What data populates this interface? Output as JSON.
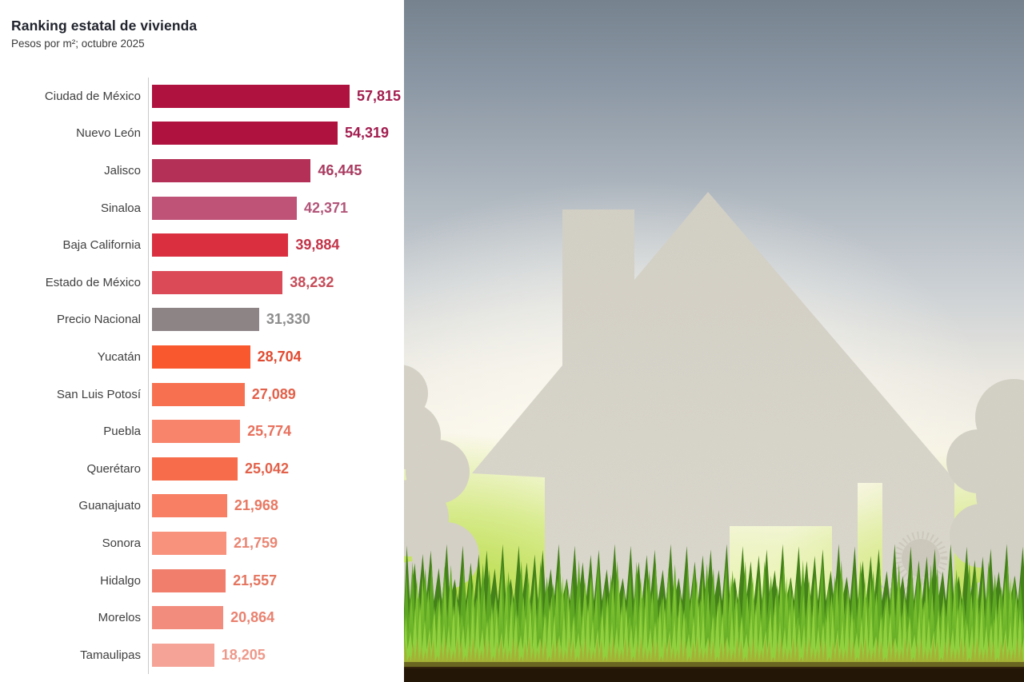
{
  "chart": {
    "title": "Ranking estatal de vivienda",
    "subtitle": "Pesos por m²; octubre 2025"
  },
  "chart_data": {
    "type": "bar",
    "orientation": "horizontal",
    "title": "Ranking estatal de vivienda",
    "subtitle": "Pesos por m²; octubre 2025",
    "unit": "pesos por m²",
    "categories": [
      "Ciudad de México",
      "Nuevo León",
      "Jalisco",
      "Sinaloa",
      "Baja California",
      "Estado de México",
      "Precio Nacional",
      "Yucatán",
      "San Luis Potosí",
      "Puebla",
      "Querétaro",
      "Guanajuato",
      "Sonora",
      "Hidalgo",
      "Morelos",
      "Tamaulipas"
    ],
    "values": [
      57815,
      54319,
      46445,
      42371,
      39884,
      38232,
      31330,
      28704,
      27089,
      25774,
      25042,
      21968,
      21759,
      21557,
      20864,
      18205
    ],
    "value_labels": [
      "57,815",
      "54,319",
      "46,445",
      "42,371",
      "39,884",
      "38,232",
      "31,330",
      "28,704",
      "27,089",
      "25,774",
      "25,042",
      "21,968",
      "21,759",
      "21,557",
      "20,864",
      "18,205"
    ],
    "bar_colors": [
      "#b0123f",
      "#b0123f",
      "#b43056",
      "#bf5277",
      "#d92f3e",
      "#da4a57",
      "#8d8486",
      "#f9572e",
      "#f77150",
      "#f8846b",
      "#f76c4b",
      "#f87f64",
      "#f8927d",
      "#f17e6d",
      "#f28c7d",
      "#f5a396"
    ],
    "value_label_colors": [
      "#a21d4e",
      "#a21d4e",
      "#a93a60",
      "#b25579",
      "#c23348",
      "#c64b58",
      "#8c8c8c",
      "#e04a31",
      "#e3604a",
      "#e8705c",
      "#e2614a",
      "#e87862",
      "#ea8471",
      "#e4755f",
      "#e9816f",
      "#ee9889"
    ],
    "label_color": "#3f3f3f",
    "axis": {
      "xlim": [
        0,
        57815
      ],
      "gridlines": false,
      "axis_line_color": "#c9c9c9"
    },
    "legend": "none",
    "national_reference_row": "Precio Nacional"
  },
  "illustration": {
    "alt": "paper cutout house with chimney, trees and dandelions standing in green grass",
    "colors": {
      "sky_top": "#76838f",
      "sky_warm": "#f6f2e7",
      "glow_green": "#b2d83a",
      "glow_yellow": "#f8f9cd",
      "paper": "#d7d4ca",
      "grass_dark": "#44811a",
      "grass_bright": "#93d23f",
      "soil": "#241607"
    }
  }
}
